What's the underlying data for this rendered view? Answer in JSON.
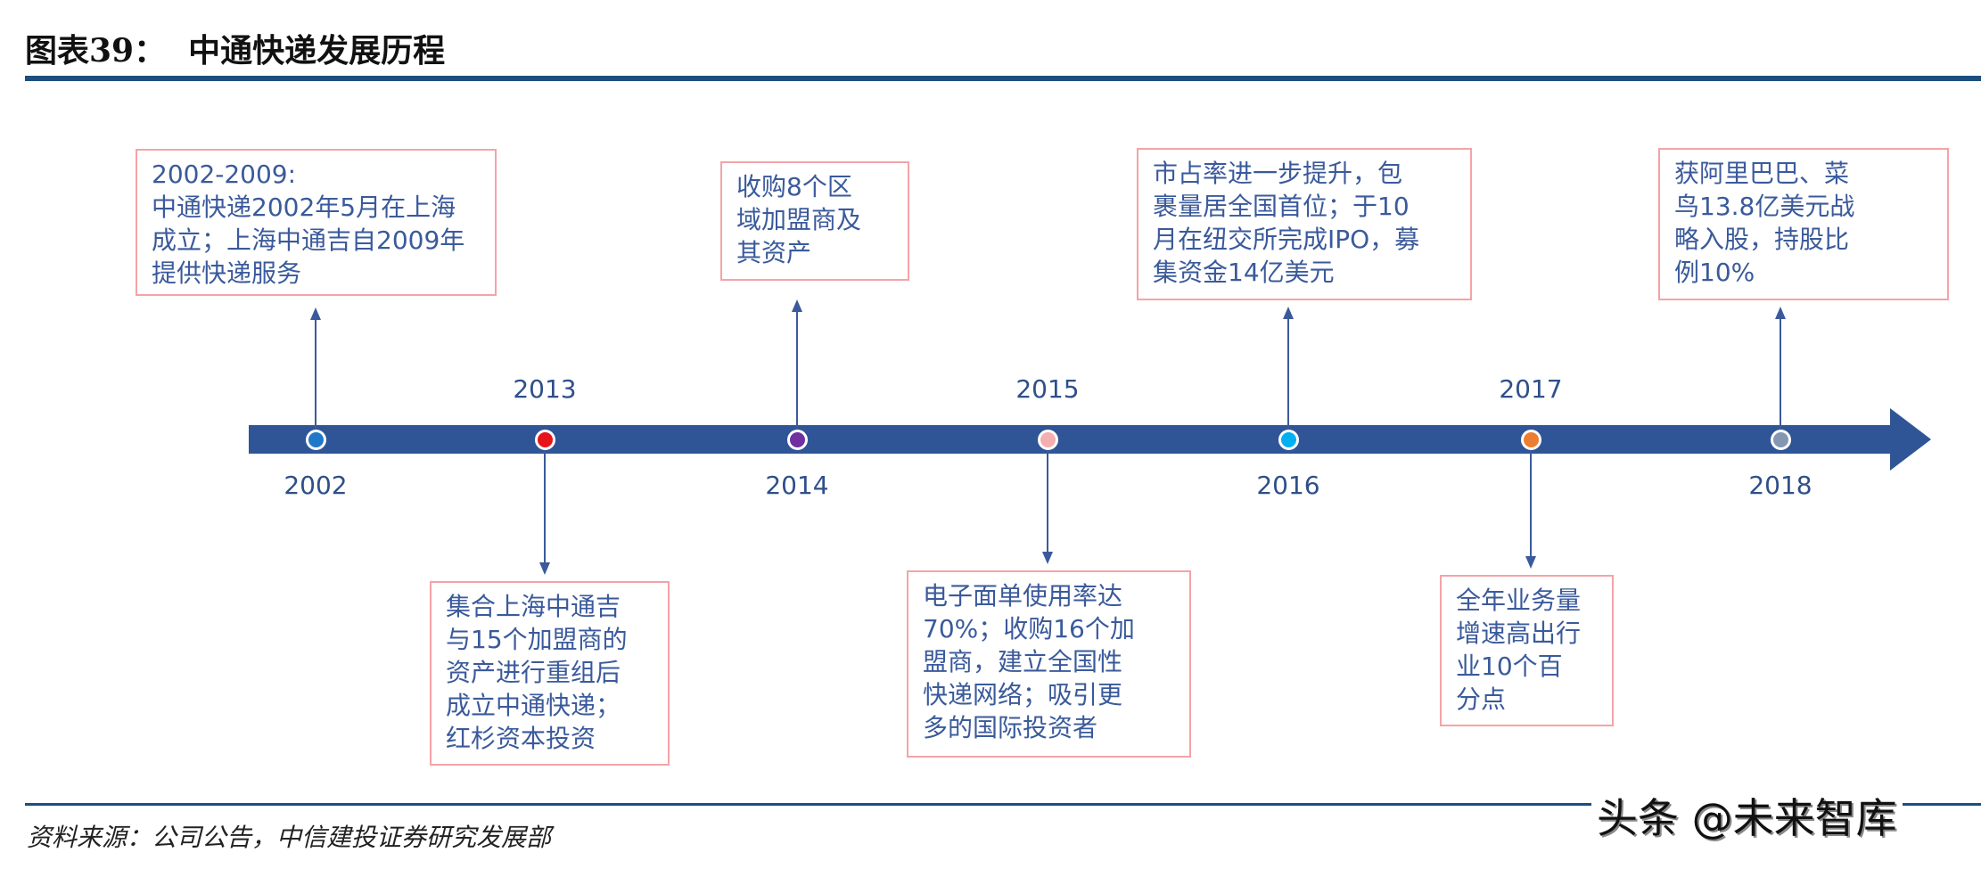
{
  "title": "图表39：  中通快递发展历程",
  "source": "资料来源：公司公告，中信建投证券研究发展部",
  "watermark": "头条 @未来智库",
  "colors": {
    "timeline": "#2f5597",
    "box_border": "#f4a3a6",
    "text": "#3a5a9b"
  },
  "milestones": [
    {
      "year": "2002",
      "dot_color": "#1f78c8",
      "lines": [
        "2002-2009:",
        "中通快递2002年5月在上海",
        "成立；上海中通吉自2009年",
        "提供快递服务"
      ]
    },
    {
      "year": "2013",
      "dot_color": "#e8141b",
      "lines": [
        "集合上海中通吉",
        "与15个加盟商的",
        "资产进行重组后",
        "成立中通快递；",
        "红杉资本投资"
      ]
    },
    {
      "year": "2014",
      "dot_color": "#7030a0",
      "lines": [
        "收购8个区",
        "域加盟商及",
        "其资产"
      ]
    },
    {
      "year": "2015",
      "dot_color": "#f4b0b0",
      "lines": [
        "电子面单使用率达",
        "70%；收购16个加",
        "盟商，建立全国性",
        "快递网络；吸引更",
        "多的国际投资者"
      ]
    },
    {
      "year": "2016",
      "dot_color": "#00b0f0",
      "lines": [
        "市占率进一步提升，包",
        "裹量居全国首位；于10",
        "月在纽交所完成IPO，募",
        "集资金14亿美元"
      ]
    },
    {
      "year": "2017",
      "dot_color": "#ed7d31",
      "lines": [
        "全年业务量",
        "增速高出行",
        "业10个百",
        "分点"
      ]
    },
    {
      "year": "2018",
      "dot_color": "#8497b0",
      "lines": [
        "获阿里巴巴、菜",
        "鸟13.8亿美元战",
        "略入股，持股比",
        "例10%"
      ]
    }
  ]
}
